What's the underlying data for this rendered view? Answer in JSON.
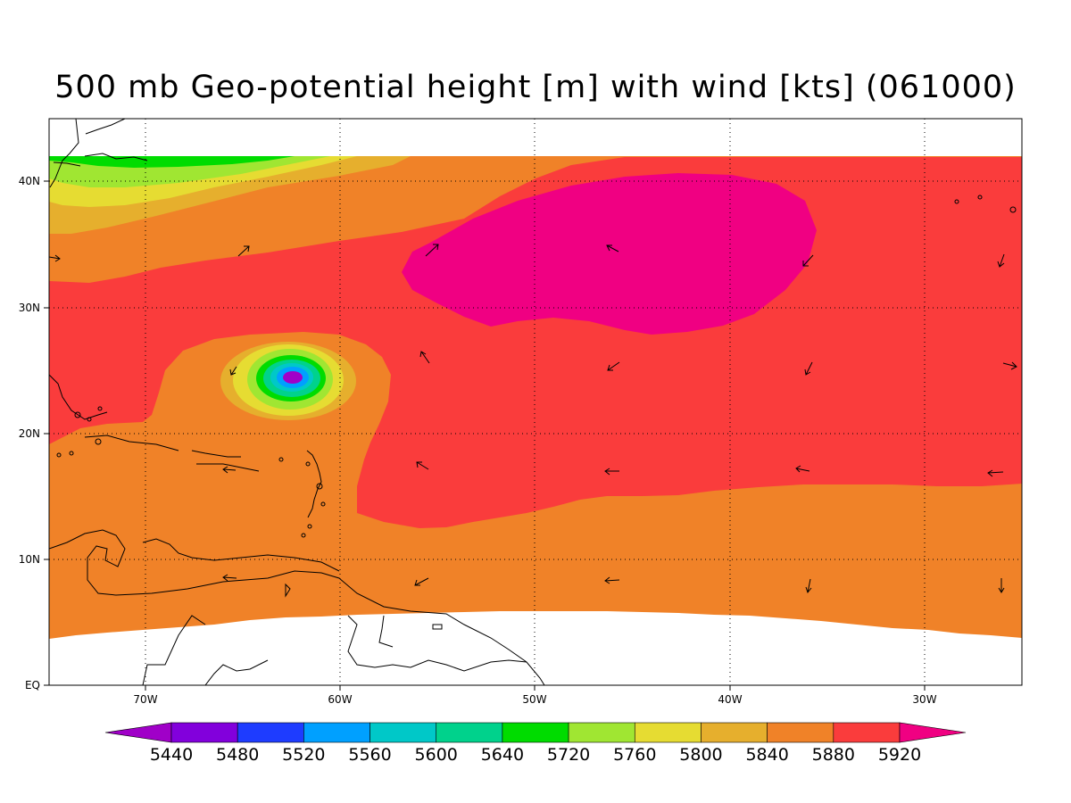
{
  "title": "500 mb Geo-potential height [m] with wind [kts] (061000)",
  "lat_ticks": [
    "40N",
    "30N",
    "20N",
    "10N",
    "EQ"
  ],
  "lon_ticks": [
    "70W",
    "60W",
    "50W",
    "40W",
    "30W"
  ],
  "colorbar": {
    "labels": [
      "5440",
      "5480",
      "5520",
      "5560",
      "5600",
      "5640",
      "5720",
      "5760",
      "5800",
      "5840",
      "5880",
      "5920"
    ],
    "colors": [
      "#a000c8",
      "#8200dc",
      "#1e3cff",
      "#00a0ff",
      "#00c8c8",
      "#00d28c",
      "#00dc00",
      "#a0e632",
      "#e6dc32",
      "#e6af2d",
      "#f08228",
      "#fa3c3c",
      "#f00082"
    ]
  },
  "map_colors": {
    "h5920": "#f00082",
    "h5880": "#fa3c3c",
    "h5840": "#f08228",
    "h5800": "#e6af2d",
    "h5760": "#e6dc32",
    "h5720": "#a0e632",
    "h5640": "#00dc00",
    "h5600": "#00d28c",
    "h5560": "#00c8c8",
    "h5520": "#00a0ff",
    "h5440": "#a000c8"
  }
}
